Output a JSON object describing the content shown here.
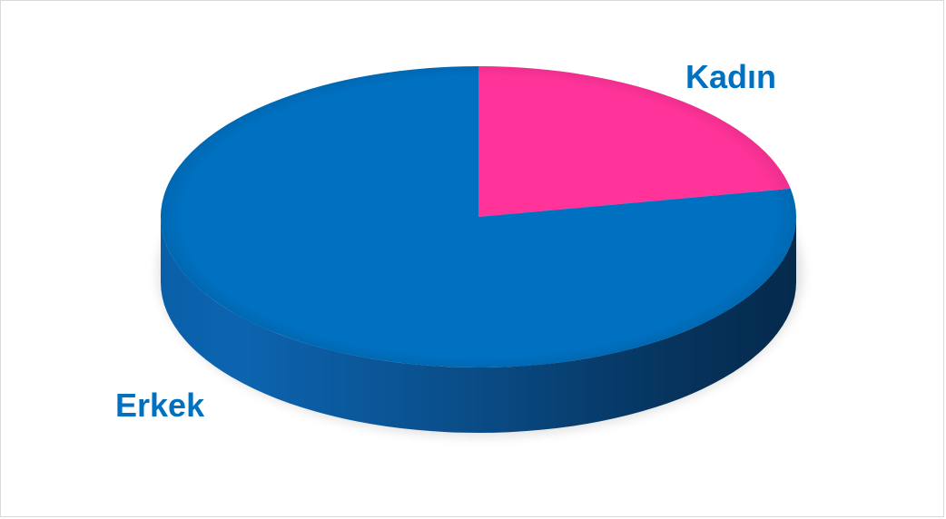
{
  "chart_data": {
    "type": "pie",
    "title": "",
    "style": "3d",
    "legend": "none",
    "categories": [
      "Kadın",
      "Erkek"
    ],
    "values": [
      0.22,
      0.78
    ],
    "colors": [
      "#FF3399",
      "#0070C0"
    ],
    "label_color": "#0070C0"
  }
}
